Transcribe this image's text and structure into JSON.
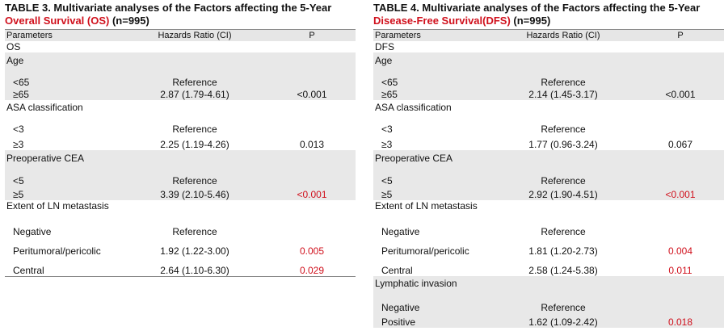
{
  "tables": [
    {
      "id": "left",
      "caption_line1": "TABLE 3. Multivariate analyses of the Factors affecting the 5-Year",
      "caption_red": "Overall Survival (OS)",
      "caption_rest": " (n=995)",
      "headers": {
        "param": "Parameters",
        "hr": "Hazards Ratio (CI)",
        "p": "P"
      },
      "rows": [
        {
          "type": "title",
          "label": "OS",
          "h": 14,
          "shaded": false
        },
        {
          "type": "group",
          "label": "Age",
          "h": 17,
          "shaded": true
        },
        {
          "type": "item",
          "label": "<65",
          "hr": "Reference",
          "p": "",
          "h": 27,
          "shaded": true,
          "indent": 8
        },
        {
          "type": "item",
          "label": "≥65",
          "hr": "2.87 (1.79-4.61)",
          "p": "<0.001",
          "h": 15,
          "shaded": true,
          "indent": 8
        },
        {
          "type": "group",
          "label": "ASA classification",
          "h": 16,
          "shaded": false
        },
        {
          "type": "item",
          "label": "<3",
          "hr": "Reference",
          "p": "",
          "h": 27,
          "shaded": false,
          "indent": 8
        },
        {
          "type": "item",
          "label": "≥3",
          "hr": "2.25 (1.19-4.26)",
          "p": "0.013",
          "h": 19,
          "shaded": false,
          "indent": 8
        },
        {
          "type": "group",
          "label": "Preoperative CEA",
          "h": 17,
          "shaded": true
        },
        {
          "type": "item",
          "label": "<5",
          "hr": "Reference",
          "p": "",
          "h": 28,
          "shaded": true,
          "indent": 8
        },
        {
          "type": "item",
          "label": "≥5",
          "hr": "3.39 (2.10-5.46)",
          "p": "<0.001",
          "pRed": true,
          "h": 17,
          "shaded": true,
          "indent": 8
        },
        {
          "type": "group",
          "label": "Extent of LN metastasis",
          "h": 14,
          "shaded": false
        },
        {
          "type": "item",
          "label": "Negative",
          "hr": "Reference",
          "p": "",
          "h": 32,
          "shaded": false,
          "indent": 8
        },
        {
          "type": "item",
          "label": "Peritumoral/pericolic",
          "hr": "1.92 (1.22-3.00)",
          "p": "0.005",
          "pRed": true,
          "h": 24,
          "shaded": false,
          "indent": 8
        },
        {
          "type": "item",
          "label": "Central",
          "hr": "2.64 (1.10-6.30)",
          "p": "0.029",
          "pRed": true,
          "h": 24,
          "shaded": false,
          "indent": 8
        }
      ]
    },
    {
      "id": "right",
      "caption_line1": "TABLE 4. Multivariate analyses of the Factors affecting the 5-Year",
      "caption_red": "Disease-Free Survival(DFS)",
      "caption_rest": " (n=995)",
      "headers": {
        "param": "Parameters",
        "hr": "Hazards Ratio (CI)",
        "p": "P"
      },
      "rows": [
        {
          "type": "title",
          "label": "DFS",
          "h": 14,
          "shaded": false
        },
        {
          "type": "group",
          "label": "Age",
          "h": 17,
          "shaded": true
        },
        {
          "type": "item",
          "label": "<65",
          "hr": "Reference",
          "p": "",
          "h": 27,
          "shaded": true,
          "indent": 8
        },
        {
          "type": "item",
          "label": "≥65",
          "hr": "2.14 (1.45-3.17)",
          "p": "<0.001",
          "h": 15,
          "shaded": true,
          "indent": 8
        },
        {
          "type": "group",
          "label": "ASA classification",
          "h": 16,
          "shaded": false
        },
        {
          "type": "item",
          "label": "<3",
          "hr": "Reference",
          "p": "",
          "h": 27,
          "shaded": false,
          "indent": 8
        },
        {
          "type": "item",
          "label": "≥3",
          "hr": "1.77 (0.96-3.24)",
          "p": "0.067",
          "h": 19,
          "shaded": false,
          "indent": 8
        },
        {
          "type": "group",
          "label": "Preoperative CEA",
          "h": 17,
          "shaded": true
        },
        {
          "type": "item",
          "label": "<5",
          "hr": "Reference",
          "p": "",
          "h": 28,
          "shaded": true,
          "indent": 8
        },
        {
          "type": "item",
          "label": "≥5",
          "hr": "2.92 (1.90-4.51)",
          "p": "<0.001",
          "pRed": true,
          "h": 17,
          "shaded": true,
          "indent": 8
        },
        {
          "type": "group",
          "label": "Extent of LN metastasis",
          "h": 14,
          "shaded": false
        },
        {
          "type": "item",
          "label": "Negative",
          "hr": "Reference",
          "p": "",
          "h": 32,
          "shaded": false,
          "indent": 8
        },
        {
          "type": "item",
          "label": "Peritumoral/pericolic",
          "hr": "1.81 (1.20-2.73)",
          "p": "0.004",
          "pRed": true,
          "h": 24,
          "shaded": false,
          "indent": 8
        },
        {
          "type": "item",
          "label": "Central",
          "hr": "2.58 (1.24-5.38)",
          "p": "0.011",
          "pRed": true,
          "h": 24,
          "shaded": false,
          "indent": 8
        },
        {
          "type": "group",
          "label": "Lymphatic invasion",
          "h": 16,
          "shaded": true
        },
        {
          "type": "item",
          "label": "Negative",
          "hr": "Reference",
          "p": "",
          "h": 30,
          "shaded": true,
          "indent": 8
        },
        {
          "type": "item",
          "label": "Positive",
          "hr": "1.62 (1.09-2.42)",
          "p": "0.018",
          "pRed": true,
          "h": 18,
          "shaded": true,
          "indent": 8
        }
      ]
    }
  ]
}
